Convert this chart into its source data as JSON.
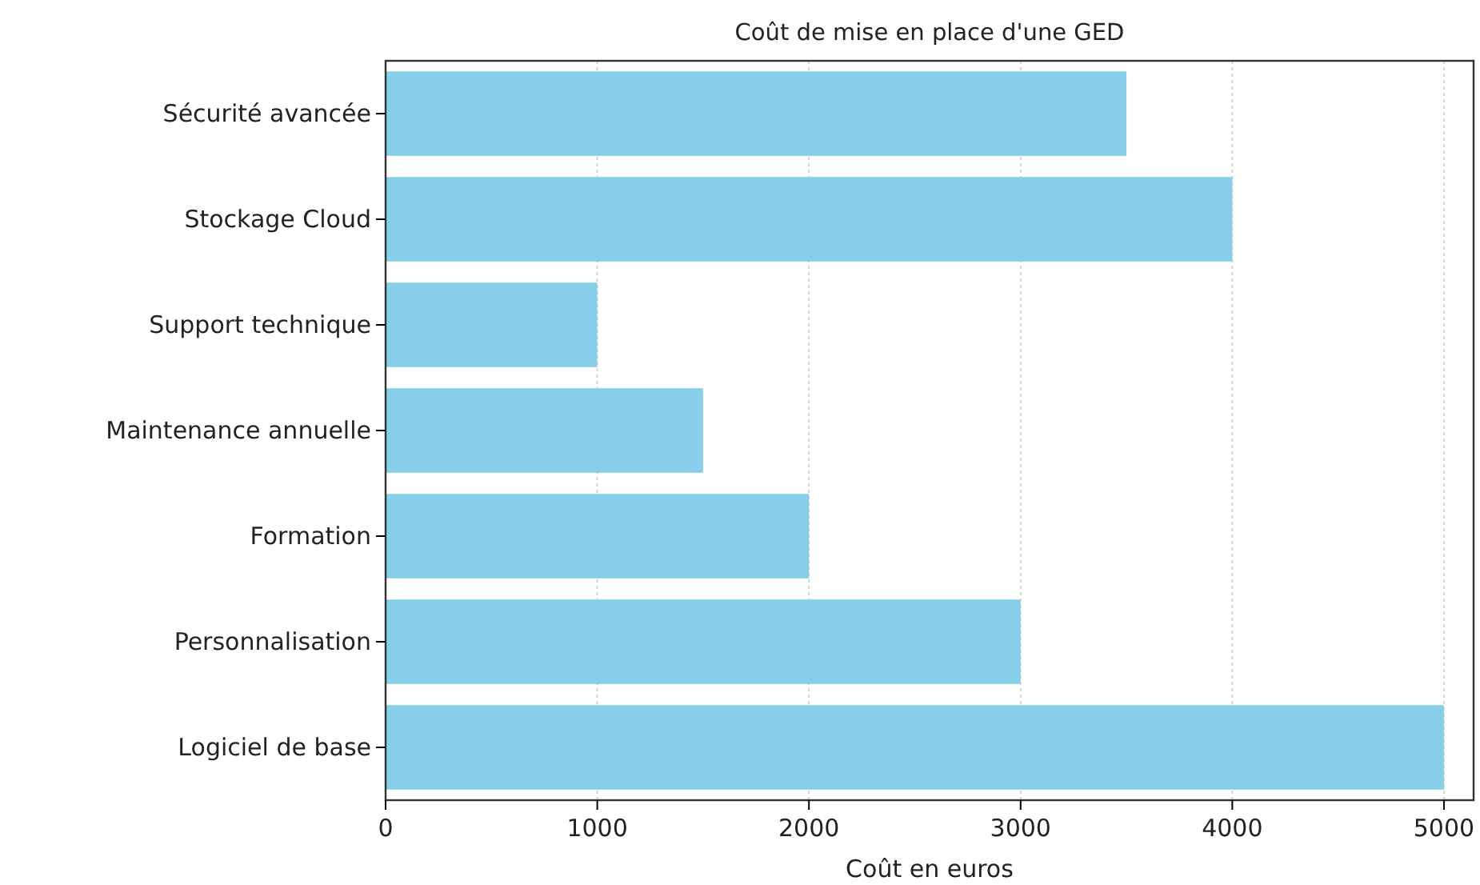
{
  "chart_data": {
    "type": "bar",
    "orientation": "horizontal",
    "title": "Coût de mise en place d'une GED",
    "xlabel": "Coût en euros",
    "categories": [
      "Sécurité avancée",
      "Stockage Cloud",
      "Support technique",
      "Maintenance annuelle",
      "Formation",
      "Personnalisation",
      "Logiciel de base"
    ],
    "values": [
      3500,
      4000,
      1000,
      1500,
      2000,
      3000,
      5000
    ],
    "color": "#87ceeb",
    "xlim": [
      0,
      5140
    ],
    "xticks": [
      0,
      1000,
      2000,
      3000,
      4000,
      5000
    ],
    "grid": "x"
  }
}
